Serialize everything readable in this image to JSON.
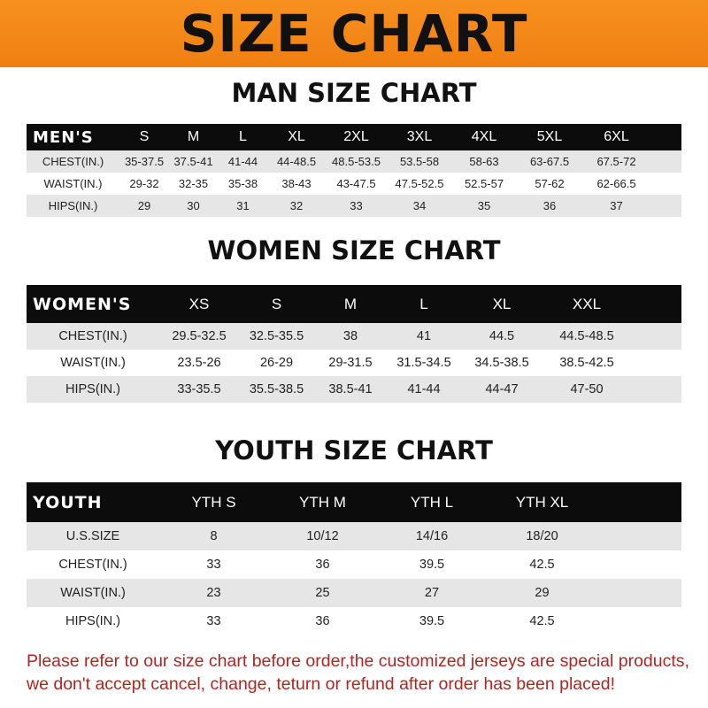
{
  "banner": "SIZE CHART",
  "men": {
    "title": "MAN SIZE CHART",
    "header": "MEN'S",
    "sizes": [
      "S",
      "M",
      "L",
      "XL",
      "2XL",
      "3XL",
      "4XL",
      "5XL",
      "6XL"
    ],
    "rows": [
      {
        "label": "CHEST(IN.)",
        "values": [
          "35-37.5",
          "37.5-41",
          "41-44",
          "44-48.5",
          "48.5-53.5",
          "53.5-58",
          "58-63",
          "63-67.5",
          "67.5-72"
        ]
      },
      {
        "label": "WAIST(IN.)",
        "values": [
          "29-32",
          "32-35",
          "35-38",
          "38-43",
          "43-47.5",
          "47.5-52.5",
          "52.5-57",
          "57-62",
          "62-66.5"
        ]
      },
      {
        "label": "HIPS(IN.)",
        "values": [
          "29",
          "30",
          "31",
          "32",
          "33",
          "34",
          "35",
          "36",
          "37"
        ]
      }
    ]
  },
  "women": {
    "title": "WOMEN SIZE CHART",
    "header": "WOMEN'S",
    "sizes": [
      "XS",
      "S",
      "M",
      "L",
      "XL",
      "XXL"
    ],
    "rows": [
      {
        "label": "CHEST(IN.)",
        "values": [
          "29.5-32.5",
          "32.5-35.5",
          "38",
          "41",
          "44.5",
          "44.5-48.5"
        ]
      },
      {
        "label": "WAIST(IN.)",
        "values": [
          "23.5-26",
          "26-29",
          "29-31.5",
          "31.5-34.5",
          "34.5-38.5",
          "38.5-42.5"
        ]
      },
      {
        "label": "HIPS(IN.)",
        "values": [
          "33-35.5",
          "35.5-38.5",
          "38.5-41",
          "41-44",
          "44-47",
          "47-50"
        ]
      }
    ]
  },
  "youth": {
    "title": "YOUTH SIZE CHART",
    "header": "YOUTH",
    "sizes": [
      "YTH S",
      "YTH M",
      "YTH L",
      "YTH XL"
    ],
    "rows": [
      {
        "label": "U.S.SIZE",
        "values": [
          "8",
          "10/12",
          "14/16",
          "18/20"
        ]
      },
      {
        "label": "CHEST(IN.)",
        "values": [
          "33",
          "36",
          "39.5",
          "42.5"
        ]
      },
      {
        "label": "WAIST(IN.)",
        "values": [
          "23",
          "25",
          "27",
          "29"
        ]
      },
      {
        "label": "HIPS(IN.)",
        "values": [
          "33",
          "36",
          "39.5",
          "42.5"
        ]
      }
    ]
  },
  "note": {
    "line1": "Please refer to our size chart before order,the customized jerseys are special products,",
    "line2": "we don't accept cancel, change, teturn or refund after order has been placed!"
  }
}
